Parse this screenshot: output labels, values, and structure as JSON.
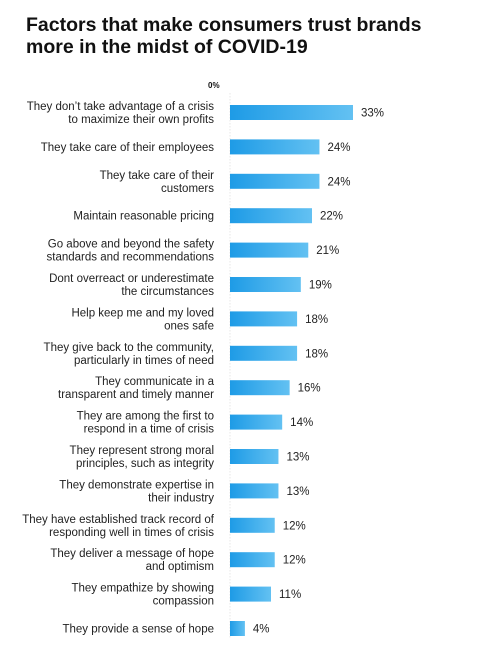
{
  "chart_data": {
    "type": "bar",
    "orientation": "horizontal",
    "title": "Factors that make consumers trust brands more in the midst of COVID-19",
    "axis_zero_label": "0%",
    "value_suffix": "%",
    "xlim": [
      0,
      33
    ],
    "bar_color": "#1e9be6",
    "bar_color_light": "#63c1f2",
    "categories": [
      [
        "They don’t take advantage of a crisis",
        "to maximize their own profits"
      ],
      [
        "They take care of their employees"
      ],
      [
        "They take care of their",
        "customers"
      ],
      [
        "Maintain reasonable pricing"
      ],
      [
        "Go above and beyond the safety",
        "standards and recommendations"
      ],
      [
        "Dont overreact or underestimate",
        "the circumstances"
      ],
      [
        "Help keep me and my loved",
        "ones safe"
      ],
      [
        "They give back to the community,",
        "particularly in times of need"
      ],
      [
        "They communicate in a",
        "transparent and timely  manner"
      ],
      [
        "They are among the first to",
        "respond in a time of crisis"
      ],
      [
        "They represent strong moral",
        "principles, such as integrity"
      ],
      [
        "They demonstrate expertise in",
        "their industry"
      ],
      [
        "They have established track record of",
        "responding well in times of crisis"
      ],
      [
        "They deliver a message of hope",
        "and optimism"
      ],
      [
        "They empathize by showing",
        "compassion"
      ],
      [
        "They provide a sense of hope"
      ]
    ],
    "values": [
      33,
      24,
      24,
      22,
      21,
      19,
      18,
      18,
      16,
      14,
      13,
      13,
      12,
      12,
      11,
      4
    ]
  }
}
